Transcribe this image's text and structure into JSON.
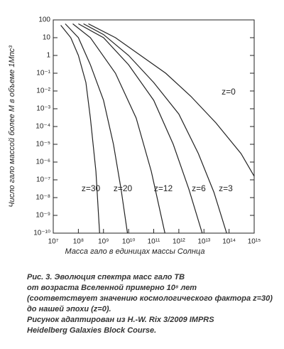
{
  "chart_data": {
    "type": "line",
    "xlabel": "Масса гало в единицах массы Солнца",
    "ylabel": "Число гало массой более M в объеме 1Мпс³",
    "log_x": true,
    "log_y": true,
    "xlim": [
      10000000,
      1000000000000000
    ],
    "ylim": [
      1e-10,
      100
    ],
    "xticks": [
      {
        "value": 10000000,
        "label": "10⁷"
      },
      {
        "value": 100000000,
        "label": "10⁸"
      },
      {
        "value": 1000000000,
        "label": "10⁹"
      },
      {
        "value": 10000000000,
        "label": "10¹⁰"
      },
      {
        "value": 100000000000,
        "label": "10¹¹"
      },
      {
        "value": 1000000000000,
        "label": "10¹²"
      },
      {
        "value": 10000000000000,
        "label": "10¹³"
      },
      {
        "value": 100000000000000,
        "label": "10¹⁴"
      },
      {
        "value": 1000000000000000,
        "label": "10¹⁵"
      }
    ],
    "yticks": [
      100,
      10,
      1,
      {
        "value": 0.1,
        "label": "10⁻¹"
      },
      {
        "value": 0.01,
        "label": "10⁻²"
      },
      {
        "value": 0.001,
        "label": "10⁻³"
      },
      {
        "value": 0.0001,
        "label": "10⁻⁴"
      },
      {
        "value": 1e-05,
        "label": "10⁻⁵"
      },
      {
        "value": 1e-06,
        "label": "10⁻⁶"
      },
      {
        "value": 1e-07,
        "label": "10⁻⁷"
      },
      {
        "value": 1e-08,
        "label": "10⁻⁸"
      },
      {
        "value": 1e-09,
        "label": "10⁻⁹"
      },
      {
        "value": 1e-10,
        "label": "10⁻¹⁰"
      }
    ],
    "series": [
      {
        "name": "z=30",
        "color": "#222222",
        "x": [
          20000000,
          50000000,
          100000000,
          200000000,
          300000000,
          500000000,
          700000000
        ],
        "values": [
          50,
          10,
          1,
          0.03,
          0.0003,
          3e-07,
          1e-10
        ]
      },
      {
        "name": "z=20",
        "color": "#222222",
        "x": [
          30000000,
          100000000,
          300000000,
          1000000000,
          2500000000,
          5000000000,
          9000000000
        ],
        "values": [
          60,
          10,
          0.3,
          0.003,
          1e-05,
          3e-08,
          1e-10
        ]
      },
      {
        "name": "z=12",
        "color": "#222222",
        "x": [
          60000000,
          300000000,
          3000000000,
          20000000000,
          80000000000,
          280000000000
        ],
        "values": [
          60,
          10,
          0.1,
          0.0003,
          3e-07,
          1e-10
        ]
      },
      {
        "name": "z=6",
        "color": "#222222",
        "x": [
          100000000,
          1000000000,
          10000000000,
          100000000000,
          600000000000,
          2500000000000,
          8500000000000
        ],
        "values": [
          60,
          10,
          0.3,
          0.003,
          1e-05,
          3e-08,
          1e-10
        ]
      },
      {
        "name": "z=3",
        "color": "#222222",
        "x": [
          160000000,
          1000000000,
          10000000000,
          100000000000,
          1000000000000,
          6000000000000,
          25000000000000,
          80000000000000
        ],
        "values": [
          60,
          15,
          1,
          0.03,
          0.0005,
          3e-06,
          2e-08,
          1e-10
        ]
      },
      {
        "name": "z=0",
        "color": "#222222",
        "x": [
          250000000,
          3000000000,
          30000000000,
          300000000000,
          3000000000000,
          30000000000000,
          300000000000000,
          1000000000000000
        ],
        "values": [
          60,
          10,
          1,
          0.1,
          0.005,
          0.00016,
          3e-06,
          1.6e-07
        ]
      }
    ],
    "caption": [
      "Рис. 3. Эволюция спектра масс гало ТВ",
      "от возраста Вселенной примерно 10⁸ лет",
      "(соответствует значению космологического фактора z=30)",
      "до нашей эпохи (z=0).",
      "Рисунок адаптирован из H.-W. Rix 3/2009 IMPRS",
      "Heidelberg Galaxies Block Course."
    ]
  }
}
